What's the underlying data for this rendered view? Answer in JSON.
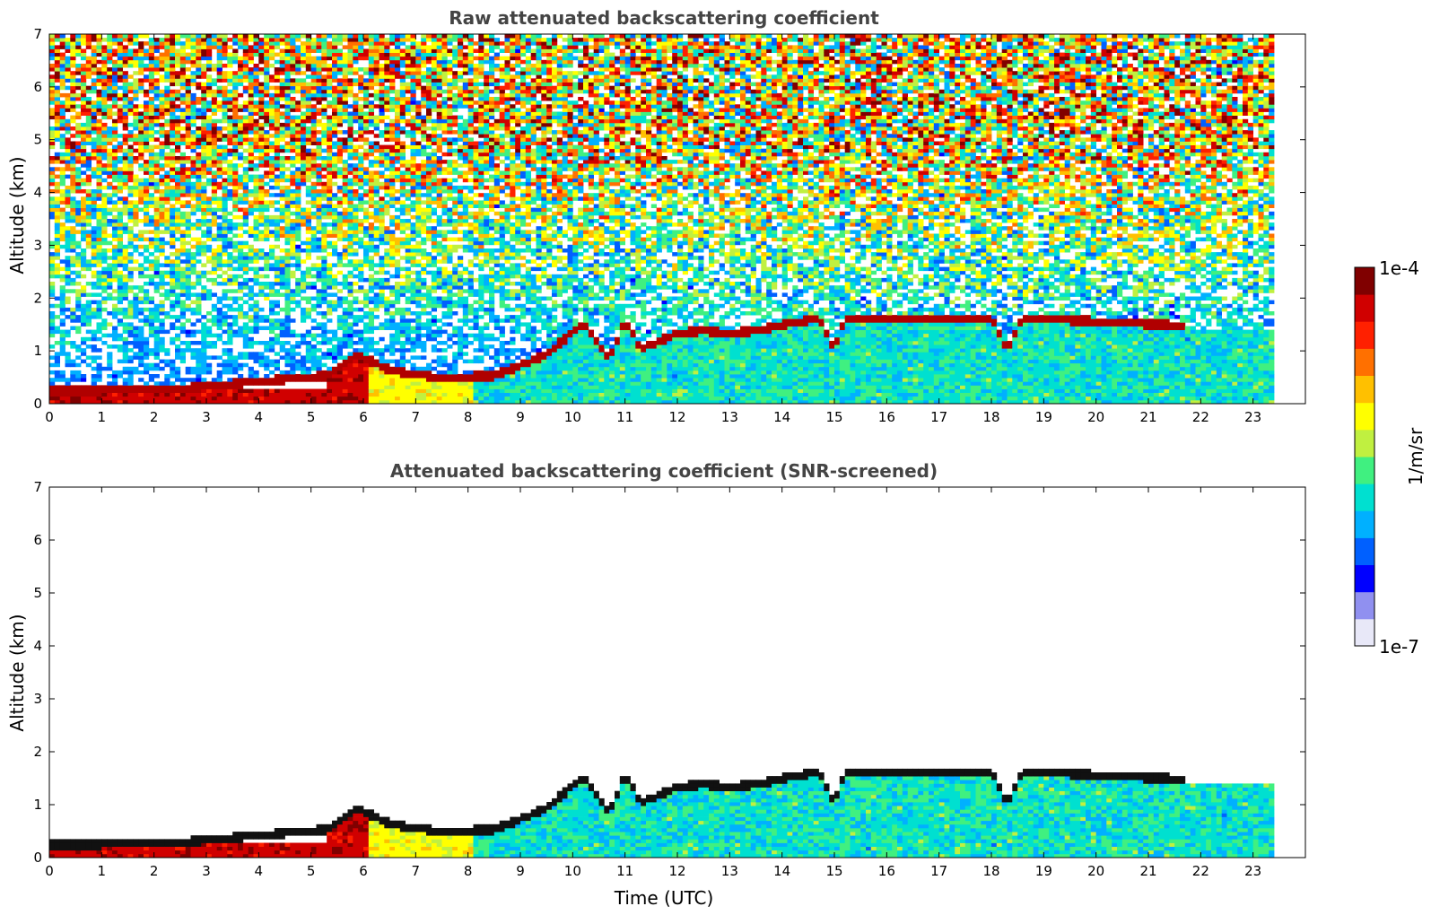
{
  "chart_data": [
    {
      "type": "heatmap",
      "title": "Raw attenuated backscattering coefficient",
      "xlabel": "",
      "ylabel": "Altitude (km)",
      "xlim": [
        0,
        24
      ],
      "ylim": [
        0,
        7
      ],
      "xticks": [
        "0",
        "1",
        "2",
        "3",
        "4",
        "5",
        "6",
        "7",
        "8",
        "9",
        "10",
        "11",
        "12",
        "13",
        "14",
        "15",
        "16",
        "17",
        "18",
        "19",
        "20",
        "21",
        "22",
        "23"
      ],
      "yticks": [
        "0",
        "1",
        "2",
        "3",
        "4",
        "5",
        "6",
        "7"
      ],
      "data_end_time": 23.4,
      "cloud_top_km": [
        [
          0,
          0.2
        ],
        [
          2.5,
          0.25
        ],
        [
          5.3,
          0.5
        ],
        [
          5.9,
          0.9
        ],
        [
          6.5,
          0.6
        ],
        [
          7.5,
          0.45
        ],
        [
          8.5,
          0.5
        ],
        [
          9.5,
          0.9
        ],
        [
          10.2,
          1.5
        ],
        [
          10.7,
          0.8
        ],
        [
          11.0,
          1.55
        ],
        [
          11.3,
          1.0
        ],
        [
          12.0,
          1.3
        ],
        [
          12.5,
          1.35
        ],
        [
          13.0,
          1.3
        ],
        [
          13.5,
          1.35
        ],
        [
          14.0,
          1.45
        ],
        [
          14.7,
          1.6
        ],
        [
          15.0,
          1.0
        ],
        [
          15.2,
          1.6
        ],
        [
          16.0,
          1.6
        ],
        [
          17.0,
          1.6
        ],
        [
          18.0,
          1.6
        ],
        [
          18.3,
          1.0
        ],
        [
          18.6,
          1.6
        ],
        [
          19.5,
          1.55
        ],
        [
          20.5,
          1.5
        ],
        [
          21.6,
          1.45
        ]
      ],
      "noise": true
    },
    {
      "type": "heatmap",
      "title": "Attenuated backscattering coefficient (SNR-screened)",
      "xlabel": "Time (UTC)",
      "ylabel": "Altitude (km)",
      "xlim": [
        0,
        24
      ],
      "ylim": [
        0,
        7
      ],
      "xticks": [
        "0",
        "1",
        "2",
        "3",
        "4",
        "5",
        "6",
        "7",
        "8",
        "9",
        "10",
        "11",
        "12",
        "13",
        "14",
        "15",
        "16",
        "17",
        "18",
        "19",
        "20",
        "21",
        "22",
        "23"
      ],
      "yticks": [
        "0",
        "1",
        "2",
        "3",
        "4",
        "5",
        "6",
        "7"
      ],
      "data_end_time": 23.4,
      "cloud_top_km": [
        [
          0,
          0.2
        ],
        [
          2.5,
          0.25
        ],
        [
          5.3,
          0.5
        ],
        [
          5.9,
          0.9
        ],
        [
          6.5,
          0.6
        ],
        [
          7.5,
          0.45
        ],
        [
          8.5,
          0.5
        ],
        [
          9.5,
          0.9
        ],
        [
          10.2,
          1.5
        ],
        [
          10.7,
          0.8
        ],
        [
          11.0,
          1.55
        ],
        [
          11.3,
          1.0
        ],
        [
          12.0,
          1.3
        ],
        [
          12.5,
          1.35
        ],
        [
          13.0,
          1.3
        ],
        [
          13.5,
          1.35
        ],
        [
          14.0,
          1.45
        ],
        [
          14.7,
          1.6
        ],
        [
          15.0,
          1.0
        ],
        [
          15.2,
          1.6
        ],
        [
          16.0,
          1.6
        ],
        [
          17.0,
          1.6
        ],
        [
          18.0,
          1.6
        ],
        [
          18.3,
          1.0
        ],
        [
          18.6,
          1.6
        ],
        [
          19.5,
          1.55
        ],
        [
          20.5,
          1.5
        ],
        [
          21.6,
          1.45
        ]
      ],
      "noise": false
    }
  ],
  "colorbar": {
    "max_label": "1e-4",
    "min_label": "1e-7",
    "unit_label": "1/m/sr",
    "colors": [
      "#e8e8f8",
      "#9090f0",
      "#0000ff",
      "#0060ff",
      "#00b0ff",
      "#00e0d0",
      "#40f080",
      "#c0f040",
      "#ffff00",
      "#ffc000",
      "#ff7000",
      "#ff2000",
      "#d00000",
      "#800000"
    ]
  }
}
